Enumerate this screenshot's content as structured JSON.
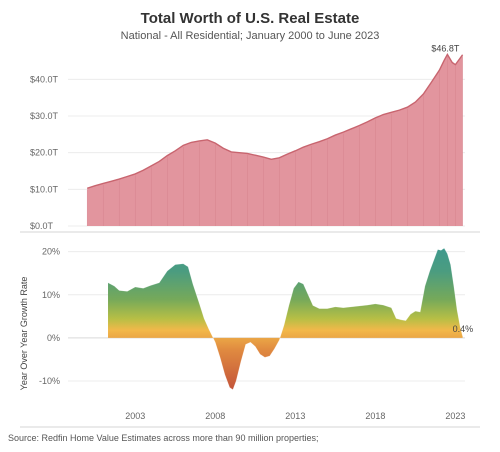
{
  "title": "Total Worth of U.S. Real Estate",
  "subtitle": "National - All Residential; January 2000 to June 2023",
  "source": "Source: Redfin Home Value Estimates across more than 90 million properties;",
  "colors": {
    "worth_fill": "#e2959e",
    "worth_line": "#c8656f",
    "growth_high": "#3f9a8d",
    "growth_mid": "#76a95a",
    "growth_low_pos": "#c9c43f",
    "growth_small_neg": "#f2b84a",
    "growth_deep_neg": "#c4553a"
  },
  "chart_data": [
    {
      "type": "area",
      "title": "",
      "ylabel": "",
      "ylim": [
        0,
        48
      ],
      "y_ticks": [
        "$0.0T",
        "$10.0T",
        "$20.0T",
        "$30.0T",
        "$40.0T"
      ],
      "y_tick_values": [
        0,
        10,
        20,
        30,
        40
      ],
      "annotation": "$46.8T",
      "x": [
        2000.0,
        2000.5,
        2001.0,
        2001.5,
        2002.0,
        2002.5,
        2003.0,
        2003.5,
        2004.0,
        2004.5,
        2005.0,
        2005.5,
        2006.0,
        2006.5,
        2007.0,
        2007.5,
        2008.0,
        2008.5,
        2009.0,
        2009.5,
        2010.0,
        2010.5,
        2011.0,
        2011.5,
        2012.0,
        2012.5,
        2013.0,
        2013.5,
        2014.0,
        2014.5,
        2015.0,
        2015.5,
        2016.0,
        2016.5,
        2017.0,
        2017.5,
        2018.0,
        2018.5,
        2019.0,
        2019.5,
        2020.0,
        2020.5,
        2021.0,
        2021.5,
        2022.0,
        2022.3,
        2022.5,
        2022.8,
        2023.0,
        2023.2,
        2023.45
      ],
      "values": [
        10.3,
        11.0,
        11.6,
        12.2,
        12.8,
        13.5,
        14.2,
        15.2,
        16.4,
        17.6,
        19.2,
        20.5,
        22.0,
        22.8,
        23.2,
        23.5,
        22.6,
        21.2,
        20.2,
        20.0,
        19.8,
        19.3,
        18.8,
        18.2,
        18.6,
        19.6,
        20.5,
        21.5,
        22.3,
        23.0,
        23.8,
        24.8,
        25.6,
        26.5,
        27.4,
        28.4,
        29.5,
        30.4,
        31.0,
        31.6,
        32.4,
        33.8,
        36.0,
        39.2,
        42.5,
        45.2,
        46.8,
        44.6,
        44.0,
        45.2,
        46.7
      ],
      "x_ticks": [
        2003,
        2008,
        2013,
        2018,
        2023
      ]
    },
    {
      "type": "area",
      "title": "",
      "ylabel": "Year Over Year Growth Rate",
      "ylim": [
        -13,
        22
      ],
      "y_ticks": [
        "-10%",
        "0%",
        "10%",
        "20%"
      ],
      "y_tick_values": [
        -10,
        0,
        10,
        20
      ],
      "annotation": "0.4%",
      "x_ticks": [
        "2003",
        "2008",
        "2013",
        "2018",
        "2023"
      ],
      "x_tick_values": [
        2003,
        2008,
        2013,
        2018,
        2023
      ],
      "x": [
        2001.3,
        2001.7,
        2002.0,
        2002.5,
        2003.0,
        2003.5,
        2004.0,
        2004.5,
        2005.0,
        2005.5,
        2006.0,
        2006.3,
        2006.6,
        2007.0,
        2007.3,
        2007.6,
        2008.0,
        2008.3,
        2008.6,
        2008.9,
        2009.1,
        2009.3,
        2009.6,
        2009.9,
        2010.2,
        2010.5,
        2010.8,
        2011.1,
        2011.4,
        2011.7,
        2012.0,
        2012.3,
        2012.6,
        2012.9,
        2013.2,
        2013.5,
        2013.8,
        2014.1,
        2014.5,
        2015.0,
        2015.5,
        2016.0,
        2016.5,
        2017.0,
        2017.5,
        2018.0,
        2018.5,
        2019.0,
        2019.3,
        2019.6,
        2019.9,
        2020.2,
        2020.5,
        2020.8,
        2021.1,
        2021.4,
        2021.7,
        2021.9,
        2022.1,
        2022.3,
        2022.5,
        2022.7,
        2022.9,
        2023.1,
        2023.3,
        2023.45
      ],
      "values": [
        12.8,
        12.0,
        11.0,
        10.8,
        11.8,
        11.5,
        12.2,
        12.8,
        15.5,
        17.0,
        17.2,
        16.5,
        12.5,
        8.0,
        4.5,
        2.0,
        -1.0,
        -4.5,
        -8.5,
        -11.5,
        -12.0,
        -10.0,
        -5.5,
        -1.5,
        -1.0,
        -2.0,
        -3.8,
        -4.5,
        -4.2,
        -2.5,
        -0.5,
        3.0,
        7.5,
        11.5,
        13.0,
        12.5,
        10.0,
        7.5,
        6.8,
        6.8,
        7.2,
        7.0,
        7.2,
        7.4,
        7.6,
        7.9,
        7.6,
        7.0,
        4.5,
        4.2,
        4.0,
        5.5,
        6.2,
        6.0,
        12.0,
        15.5,
        18.5,
        20.5,
        20.3,
        20.8,
        19.5,
        17.0,
        12.0,
        6.5,
        2.5,
        0.4
      ]
    }
  ]
}
